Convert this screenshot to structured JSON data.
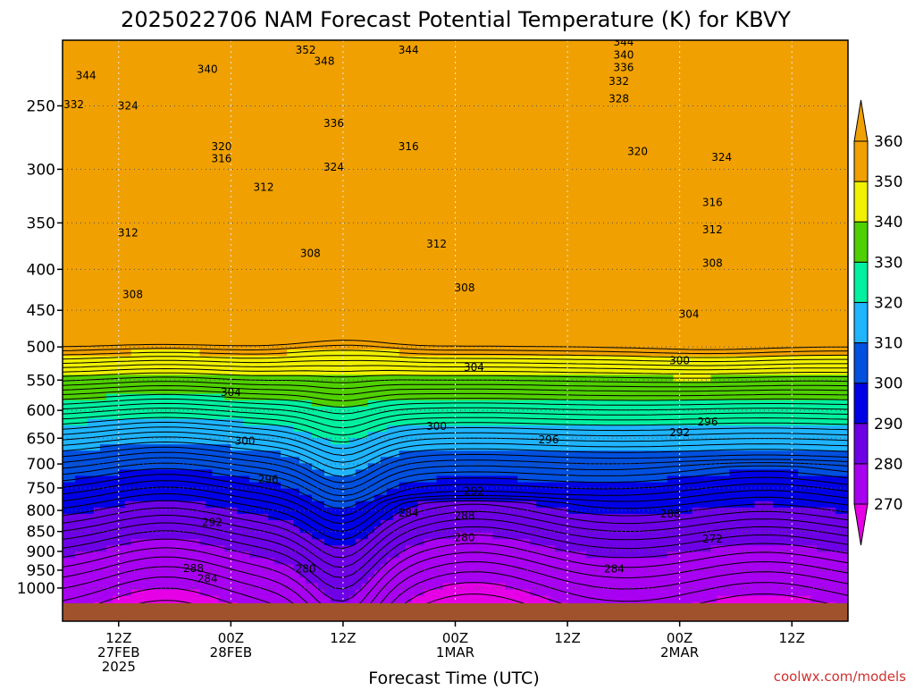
{
  "chart_data": {
    "type": "heatmap",
    "title": "2025022706 NAM Forecast Potential Temperature (K) for KBVY",
    "xlabel": "Forecast Time (UTC)",
    "ylabel": "",
    "watermark": "coolwx.com/models",
    "y_axis": {
      "scale": "log",
      "reversed": true,
      "ticks": [
        250,
        300,
        350,
        400,
        450,
        500,
        550,
        600,
        650,
        700,
        750,
        800,
        850,
        900,
        950,
        1000
      ]
    },
    "x_axis": {
      "ticks": [
        {
          "h": 6,
          "lines": [
            "12Z",
            "27FEB",
            "2025"
          ]
        },
        {
          "h": 18,
          "lines": [
            "00Z",
            "28FEB"
          ]
        },
        {
          "h": 30,
          "lines": [
            "12Z"
          ]
        },
        {
          "h": 42,
          "lines": [
            "00Z",
            "1MAR"
          ]
        },
        {
          "h": 54,
          "lines": [
            "12Z"
          ]
        },
        {
          "h": 66,
          "lines": [
            "00Z",
            "2MAR"
          ]
        },
        {
          "h": 78,
          "lines": [
            "12Z"
          ]
        }
      ]
    },
    "colorbar": {
      "ticks": [
        270,
        280,
        290,
        300,
        310,
        320,
        330,
        340,
        350,
        360
      ],
      "colors": [
        "#e600e6",
        "#a800f0",
        "#6e00e6",
        "#0000e6",
        "#0050e0",
        "#1fb4ff",
        "#00f0a0",
        "#50d000",
        "#f0f000",
        "#f0a000"
      ]
    },
    "grid": true,
    "terrain_color": "#a0522d",
    "contour_labels": [
      {
        "v": "344",
        "h": 2.5,
        "p": 229
      },
      {
        "v": "332",
        "h": 1.2,
        "p": 249
      },
      {
        "v": "324",
        "h": 7,
        "p": 250
      },
      {
        "v": "340",
        "h": 15.5,
        "p": 225
      },
      {
        "v": "352",
        "h": 26,
        "p": 213
      },
      {
        "v": "348",
        "h": 28,
        "p": 220
      },
      {
        "v": "344",
        "h": 37,
        "p": 213
      },
      {
        "v": "336",
        "h": 29,
        "p": 263
      },
      {
        "v": "320",
        "h": 17,
        "p": 281
      },
      {
        "v": "316",
        "h": 17,
        "p": 291
      },
      {
        "v": "312",
        "h": 21.5,
        "p": 316
      },
      {
        "v": "312",
        "h": 7,
        "p": 360
      },
      {
        "v": "316",
        "h": 37,
        "p": 281
      },
      {
        "v": "324",
        "h": 29,
        "p": 298
      },
      {
        "v": "308",
        "h": 26.5,
        "p": 382
      },
      {
        "v": "308",
        "h": 7.5,
        "p": 430
      },
      {
        "v": "312",
        "h": 40,
        "p": 372
      },
      {
        "v": "308",
        "h": 43,
        "p": 422
      },
      {
        "v": "344",
        "h": 60,
        "p": 208
      },
      {
        "v": "340",
        "h": 60,
        "p": 216
      },
      {
        "v": "336",
        "h": 60,
        "p": 224
      },
      {
        "v": "332",
        "h": 59.5,
        "p": 233
      },
      {
        "v": "328",
        "h": 59.5,
        "p": 245
      },
      {
        "v": "320",
        "h": 61.5,
        "p": 285
      },
      {
        "v": "324",
        "h": 70.5,
        "p": 290
      },
      {
        "v": "316",
        "h": 69.5,
        "p": 330
      },
      {
        "v": "312",
        "h": 69.5,
        "p": 357
      },
      {
        "v": "308",
        "h": 69.5,
        "p": 393
      },
      {
        "v": "304",
        "h": 67,
        "p": 455
      },
      {
        "v": "300",
        "h": 66,
        "p": 520
      },
      {
        "v": "304",
        "h": 44,
        "p": 530
      },
      {
        "v": "304",
        "h": 18,
        "p": 570
      },
      {
        "v": "300",
        "h": 40,
        "p": 628
      },
      {
        "v": "300",
        "h": 19.5,
        "p": 655
      },
      {
        "v": "296",
        "h": 52,
        "p": 653
      },
      {
        "v": "296",
        "h": 22,
        "p": 732
      },
      {
        "v": "292",
        "h": 66,
        "p": 640
      },
      {
        "v": "296",
        "h": 69,
        "p": 620
      },
      {
        "v": "292",
        "h": 44,
        "p": 757
      },
      {
        "v": "284",
        "h": 37,
        "p": 806
      },
      {
        "v": "288",
        "h": 43,
        "p": 812
      },
      {
        "v": "292",
        "h": 16,
        "p": 828
      },
      {
        "v": "288",
        "h": 65,
        "p": 808
      },
      {
        "v": "280",
        "h": 43,
        "p": 865
      },
      {
        "v": "272",
        "h": 69.5,
        "p": 868
      },
      {
        "v": "288",
        "h": 14,
        "p": 945
      },
      {
        "v": "284",
        "h": 15.5,
        "p": 973
      },
      {
        "v": "280",
        "h": 26,
        "p": 946
      },
      {
        "v": "284",
        "h": 59,
        "p": 947
      }
    ]
  }
}
